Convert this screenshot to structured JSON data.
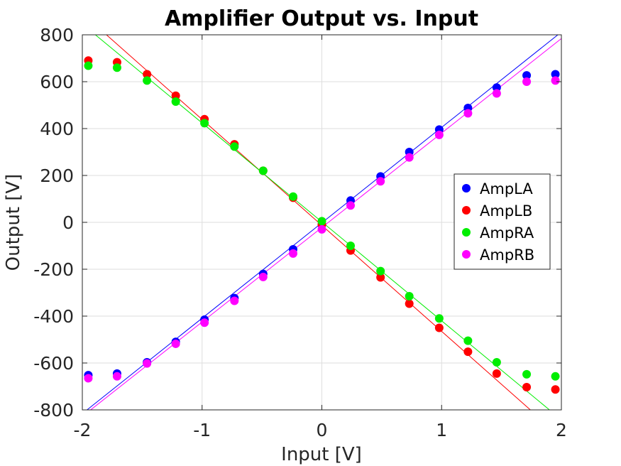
{
  "chart_data": {
    "type": "scatter",
    "title": "Amplifier Output vs. Input",
    "xlabel": "Input [V]",
    "ylabel": "Output [V]",
    "xlim": [
      -2,
      2
    ],
    "ylim": [
      -800,
      800
    ],
    "grid": true,
    "legend_position": "center-right",
    "x_ticks": [
      -2,
      -1,
      0,
      1,
      2
    ],
    "y_ticks": [
      -800,
      -600,
      -400,
      -200,
      0,
      200,
      400,
      600,
      800
    ],
    "x_tick_labels": [
      "-2",
      "-1",
      "0",
      "1",
      "2"
    ],
    "y_tick_labels": [
      "-800",
      "-600",
      "-400",
      "-200",
      "0",
      "200",
      "400",
      "600",
      "800"
    ],
    "x": [
      -1.95,
      -1.71,
      -1.46,
      -1.22,
      -0.98,
      -0.73,
      -0.49,
      -0.24,
      0.0,
      0.24,
      0.49,
      0.73,
      0.98,
      1.22,
      1.46,
      1.71,
      1.95
    ],
    "series": [
      {
        "name": "AmpLA",
        "color": "#0000ff",
        "values": [
          -652,
          -645,
          -597,
          -510,
          -415,
          -323,
          -220,
          -115,
          -10,
          93,
          196,
          300,
          396,
          488,
          575,
          627,
          632
        ],
        "fit": {
          "slope": 407,
          "intercept": -2
        }
      },
      {
        "name": "AmpLB",
        "color": "#ff0000",
        "values": [
          690,
          683,
          632,
          540,
          440,
          333,
          220,
          105,
          -10,
          -120,
          -235,
          -347,
          -450,
          -552,
          -645,
          -703,
          -713
        ],
        "fit": {
          "slope": -452,
          "intercept": -13
        }
      },
      {
        "name": "AmpRA",
        "color": "#00ee00",
        "values": [
          668,
          660,
          605,
          515,
          423,
          323,
          220,
          110,
          5,
          -100,
          -208,
          -315,
          -410,
          -505,
          -597,
          -648,
          -657
        ],
        "fit": {
          "slope": -422,
          "intercept": 2
        }
      },
      {
        "name": "AmpRB",
        "color": "#ff00ff",
        "values": [
          -665,
          -657,
          -602,
          -518,
          -428,
          -335,
          -233,
          -133,
          -30,
          72,
          175,
          277,
          373,
          465,
          550,
          600,
          605
        ],
        "fit": {
          "slope": 403,
          "intercept": -22
        }
      }
    ]
  }
}
